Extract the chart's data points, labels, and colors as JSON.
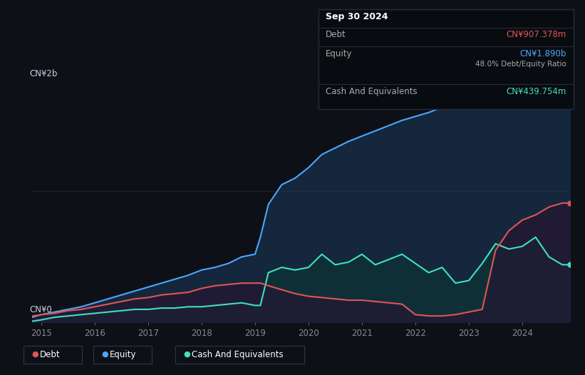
{
  "background_color": "#0d1117",
  "plot_bg_color": "#0d1117",
  "ylabel": "CN¥2b",
  "y0_label": "CN¥0",
  "ylim": [
    0,
    2.1
  ],
  "xlim": [
    2014.83,
    2024.9
  ],
  "xticks": [
    2015,
    2016,
    2017,
    2018,
    2019,
    2020,
    2021,
    2022,
    2023,
    2024
  ],
  "debt_color": "#e05555",
  "equity_color": "#4da6ff",
  "cash_color": "#40e0c0",
  "debt_label": "Debt",
  "equity_label": "Equity",
  "cash_label": "Cash And Equivalents",
  "tooltip_date": "Sep 30 2024",
  "tooltip_debt_lbl": "Debt",
  "tooltip_debt_val": "CN¥907.378m",
  "tooltip_equity_lbl": "Equity",
  "tooltip_equity_val": "CN¥1.890b",
  "tooltip_ratio": "48.0% Debt/Equity Ratio",
  "tooltip_cash_lbl": "Cash And Equivalents",
  "tooltip_cash_val": "CN¥439.754m",
  "years": [
    2014.83,
    2015.0,
    2015.25,
    2015.5,
    2015.75,
    2016.0,
    2016.25,
    2016.5,
    2016.75,
    2017.0,
    2017.25,
    2017.5,
    2017.75,
    2018.0,
    2018.25,
    2018.5,
    2018.75,
    2019.0,
    2019.1,
    2019.25,
    2019.5,
    2019.75,
    2020.0,
    2020.25,
    2020.5,
    2020.75,
    2021.0,
    2021.25,
    2021.5,
    2021.75,
    2022.0,
    2022.25,
    2022.5,
    2022.75,
    2023.0,
    2023.25,
    2023.5,
    2023.75,
    2024.0,
    2024.25,
    2024.5,
    2024.75,
    2024.9
  ],
  "equity": [
    0.04,
    0.06,
    0.08,
    0.1,
    0.12,
    0.15,
    0.18,
    0.21,
    0.24,
    0.27,
    0.3,
    0.33,
    0.36,
    0.4,
    0.42,
    0.45,
    0.5,
    0.52,
    0.65,
    0.9,
    1.05,
    1.1,
    1.18,
    1.28,
    1.33,
    1.38,
    1.42,
    1.46,
    1.5,
    1.54,
    1.57,
    1.6,
    1.64,
    1.67,
    1.72,
    1.75,
    1.8,
    1.78,
    1.82,
    1.88,
    1.95,
    1.89,
    1.89
  ],
  "debt": [
    0.05,
    0.06,
    0.07,
    0.09,
    0.1,
    0.12,
    0.14,
    0.16,
    0.18,
    0.19,
    0.21,
    0.22,
    0.23,
    0.26,
    0.28,
    0.29,
    0.3,
    0.3,
    0.3,
    0.28,
    0.25,
    0.22,
    0.2,
    0.19,
    0.18,
    0.17,
    0.17,
    0.16,
    0.15,
    0.14,
    0.06,
    0.05,
    0.05,
    0.06,
    0.08,
    0.1,
    0.55,
    0.7,
    0.78,
    0.82,
    0.88,
    0.91,
    0.91
  ],
  "cash": [
    0.01,
    0.02,
    0.04,
    0.05,
    0.06,
    0.07,
    0.08,
    0.09,
    0.1,
    0.1,
    0.11,
    0.11,
    0.12,
    0.12,
    0.13,
    0.14,
    0.15,
    0.13,
    0.13,
    0.38,
    0.42,
    0.4,
    0.42,
    0.52,
    0.44,
    0.46,
    0.52,
    0.44,
    0.48,
    0.52,
    0.45,
    0.38,
    0.42,
    0.3,
    0.32,
    0.45,
    0.6,
    0.56,
    0.58,
    0.65,
    0.5,
    0.44,
    0.44
  ]
}
